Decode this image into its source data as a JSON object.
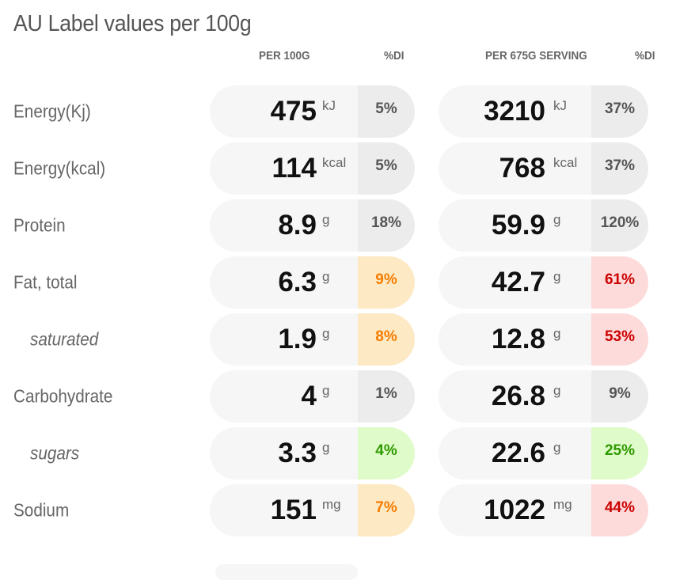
{
  "title": "AU Label values per 100g",
  "headers": {
    "per100": "PER 100G",
    "di1": "%DI",
    "perServing": "PER 675G SERVING",
    "di2": "%DI"
  },
  "colors": {
    "orange": "#f57c00",
    "red": "#cc0000",
    "green": "#2e9a00",
    "neutral": "#555555"
  },
  "rows": [
    {
      "label": "Energy(Kj)",
      "sub": false,
      "v1": "475",
      "u1": "kJ",
      "d1": "5%",
      "c1": "grey",
      "v2": "3210",
      "u2": "kJ",
      "d2": "37%",
      "c2": "grey"
    },
    {
      "label": "Energy(kcal)",
      "sub": false,
      "v1": "114",
      "u1": "kcal",
      "d1": "5%",
      "c1": "grey",
      "v2": "768",
      "u2": "kcal",
      "d2": "37%",
      "c2": "grey"
    },
    {
      "label": "Protein",
      "sub": false,
      "v1": "8.9",
      "u1": "g",
      "d1": "18%",
      "c1": "grey",
      "v2": "59.9",
      "u2": "g",
      "d2": "120%",
      "c2": "grey"
    },
    {
      "label": "Fat, total",
      "sub": false,
      "v1": "6.3",
      "u1": "g",
      "d1": "9%",
      "c1": "orange",
      "v2": "42.7",
      "u2": "g",
      "d2": "61%",
      "c2": "red"
    },
    {
      "label": "saturated",
      "sub": true,
      "v1": "1.9",
      "u1": "g",
      "d1": "8%",
      "c1": "orange",
      "v2": "12.8",
      "u2": "g",
      "d2": "53%",
      "c2": "red"
    },
    {
      "label": "Carbohydrate",
      "sub": false,
      "v1": "4",
      "u1": "g",
      "d1": "1%",
      "c1": "grey",
      "v2": "26.8",
      "u2": "g",
      "d2": "9%",
      "c2": "grey"
    },
    {
      "label": "sugars",
      "sub": true,
      "v1": "3.3",
      "u1": "g",
      "d1": "4%",
      "c1": "green",
      "v2": "22.6",
      "u2": "g",
      "d2": "25%",
      "c2": "green"
    },
    {
      "label": "Sodium",
      "sub": false,
      "v1": "151",
      "u1": "mg",
      "d1": "7%",
      "c1": "orange",
      "v2": "1022",
      "u2": "mg",
      "d2": "44%",
      "c2": "red"
    }
  ]
}
